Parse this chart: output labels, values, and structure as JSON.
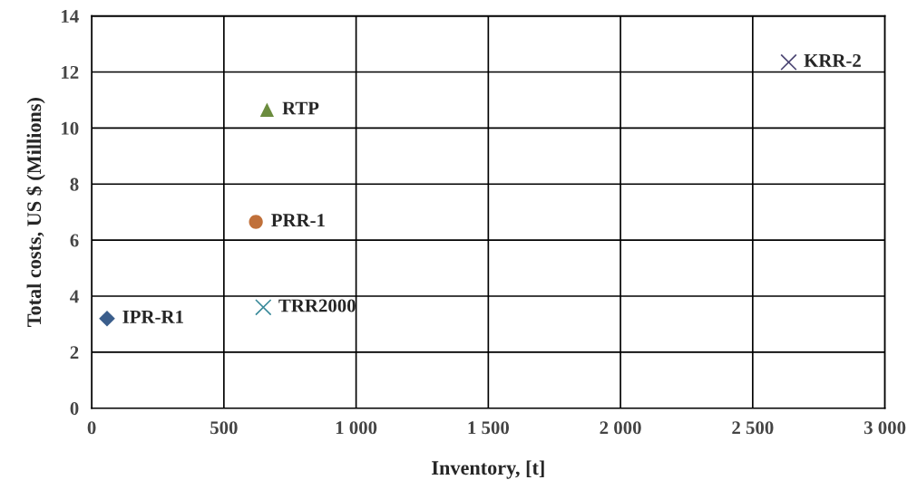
{
  "chart_data": {
    "type": "scatter",
    "xlabel": "Inventory, [t]",
    "ylabel": "Total costs, US $ (Millions)",
    "series": [
      {
        "name": "IPR-R1",
        "color": "#3b5e8c",
        "x": [
          58
        ],
        "values": [
          3.2
        ],
        "marker": "diamond"
      },
      {
        "name": "PRR-1",
        "color": "#c0703a",
        "x": [
          621
        ],
        "values": [
          6.65
        ],
        "marker": "circle"
      },
      {
        "name": "RTP",
        "color": "#6b8c3e",
        "x": [
          663
        ],
        "values": [
          10.65
        ],
        "marker": "triangle"
      },
      {
        "name": "TRR2000",
        "color": "#3a8a9a",
        "x": [
          649
        ],
        "values": [
          3.6
        ],
        "marker": "cross"
      },
      {
        "name": "KRR-2",
        "color": "#4a4472",
        "x": [
          2636
        ],
        "values": [
          12.35
        ],
        "marker": "cross"
      }
    ],
    "xlim": [
      0,
      3000
    ],
    "xticks": [
      0,
      500,
      {
        "value": 1000,
        "label": "1 000"
      },
      {
        "value": 1500,
        "label": "1 500"
      },
      {
        "value": 2000,
        "label": "2 000"
      },
      {
        "value": 2500,
        "label": "2 500"
      },
      {
        "value": 3000,
        "label": "3 000"
      }
    ],
    "ylim": [
      0,
      14
    ],
    "yticks": [
      0,
      2,
      4,
      6,
      8,
      10,
      12,
      14
    ],
    "grid": true,
    "legend": false
  }
}
